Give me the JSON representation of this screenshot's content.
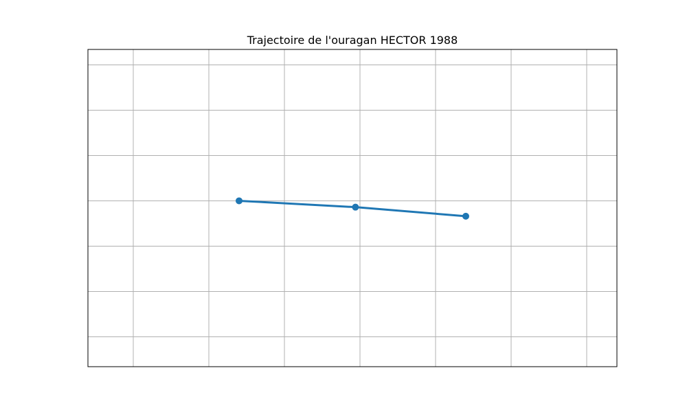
{
  "chart_data": {
    "type": "line",
    "title": "Trajectoire de l'ouragan HECTOR 1988",
    "xlabel": "",
    "ylabel": "",
    "grid": true,
    "xlim": [
      0,
      7
    ],
    "ylim": [
      0,
      7
    ],
    "x_gridlines": [
      0.6,
      1.6,
      2.6,
      3.6,
      4.6,
      5.6,
      6.6
    ],
    "y_gridlines": [
      0.66,
      1.66,
      2.66,
      3.66,
      4.66,
      5.66,
      6.66
    ],
    "series": [
      {
        "color": "#1f77b4",
        "marker": "circle",
        "points": [
          {
            "x": 2.0,
            "y": 3.66
          },
          {
            "x": 3.54,
            "y": 3.52
          },
          {
            "x": 5.0,
            "y": 3.32
          }
        ]
      }
    ]
  }
}
